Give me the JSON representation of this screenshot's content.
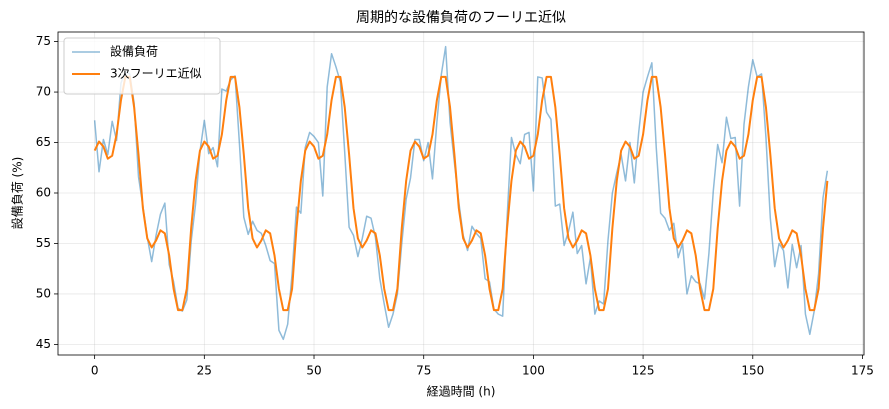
{
  "chart_data": {
    "type": "line",
    "title": "周期的な設備負荷のフーリエ近似",
    "xlabel": "経過時間 (h)",
    "ylabel": "設備負荷 (%)",
    "x": [
      0,
      1,
      2,
      3,
      4,
      5,
      6,
      7,
      8,
      9,
      10,
      11,
      12,
      13,
      14,
      15,
      16,
      17,
      18,
      19,
      20,
      21,
      22,
      23,
      24,
      25,
      26,
      27,
      28,
      29,
      30,
      31,
      32,
      33,
      34,
      35,
      36,
      37,
      38,
      39,
      40,
      41,
      42,
      43,
      44,
      45,
      46,
      47,
      48,
      49,
      50,
      51,
      52,
      53,
      54,
      55,
      56,
      57,
      58,
      59,
      60,
      61,
      62,
      63,
      64,
      65,
      66,
      67,
      68,
      69,
      70,
      71,
      72,
      73,
      74,
      75,
      76,
      77,
      78,
      79,
      80,
      81,
      82,
      83,
      84,
      85,
      86,
      87,
      88,
      89,
      90,
      91,
      92,
      93,
      94,
      95,
      96,
      97,
      98,
      99,
      100,
      101,
      102,
      103,
      104,
      105,
      106,
      107,
      108,
      109,
      110,
      111,
      112,
      113,
      114,
      115,
      116,
      117,
      118,
      119,
      120,
      121,
      122,
      123,
      124,
      125,
      126,
      127,
      128,
      129,
      130,
      131,
      132,
      133,
      134,
      135,
      136,
      137,
      138,
      139,
      140,
      141,
      142,
      143,
      144,
      145,
      146,
      147,
      148,
      149,
      150,
      151,
      152,
      153,
      154,
      155,
      156,
      157,
      158,
      159,
      160,
      161,
      162,
      163,
      164,
      165,
      166,
      167
    ],
    "series": [
      {
        "name": "設備負荷",
        "color": "#1f77b4",
        "opacity": 0.5,
        "width": 1.5,
        "values": [
          67.2,
          62.1,
          65.3,
          63.8,
          67.1,
          65.2,
          70.9,
          72.0,
          71.8,
          68.9,
          61.6,
          58.7,
          55.6,
          53.2,
          55.8,
          57.9,
          59.0,
          52.9,
          51.2,
          48.6,
          48.3,
          49.4,
          55.2,
          58.9,
          64.1,
          67.2,
          63.9,
          64.5,
          62.6,
          70.3,
          70.1,
          71.2,
          71.6,
          64.9,
          57.6,
          55.9,
          57.2,
          56.3,
          56.0,
          54.8,
          53.3,
          53.0,
          46.4,
          45.5,
          47.0,
          52.0,
          58.6,
          58.0,
          64.5,
          66.0,
          65.6,
          65.0,
          59.7,
          70.5,
          73.8,
          72.5,
          71.0,
          64.0,
          56.6,
          55.8,
          53.7,
          55.5,
          57.7,
          57.5,
          55.6,
          51.5,
          49.0,
          46.7,
          48.0,
          50.0,
          55.0,
          59.4,
          61.5,
          65.3,
          65.3,
          63.2,
          65.0,
          61.4,
          67.0,
          71.7,
          74.5,
          67.0,
          63.0,
          59.1,
          55.8,
          54.3,
          56.7,
          56.0,
          55.5,
          51.5,
          51.2,
          48.5,
          48.0,
          47.8,
          57.5,
          65.5,
          63.8,
          62.9,
          65.8,
          66.0,
          60.2,
          71.5,
          71.4,
          68.0,
          67.3,
          58.7,
          58.9,
          54.8,
          56.2,
          58.1,
          54.0,
          54.8,
          51.0,
          53.6,
          48.0,
          49.3,
          49.0,
          55.3,
          60.0,
          62.0,
          63.8,
          61.2,
          65.0,
          61.0,
          66.0,
          70.0,
          71.5,
          72.9,
          64.5,
          58.0,
          57.5,
          56.3,
          57.0,
          53.6,
          55.0,
          50.0,
          51.8,
          51.2,
          51.0,
          49.5,
          54.0,
          60.2,
          64.8,
          63.0,
          67.5,
          65.4,
          65.5,
          58.7,
          66.8,
          70.5,
          73.2,
          71.5,
          71.8,
          65.5,
          57.5,
          52.7,
          55.0,
          54.3,
          50.6,
          54.9,
          52.6,
          54.8,
          48.0,
          46.0,
          48.3,
          52.0,
          59.5,
          62.2
        ]
      },
      {
        "name": "3次フーリエ近似",
        "color": "#ff7f0e",
        "opacity": 1,
        "width": 2,
        "values": [
          64.2,
          65.1,
          64.6,
          63.4,
          63.7,
          65.8,
          69.2,
          71.5,
          71.5,
          68.5,
          63.8,
          58.5,
          55.5,
          54.6,
          55.3,
          56.3,
          56.0,
          53.8,
          50.5,
          48.4,
          48.4,
          50.5,
          56.5,
          61.2,
          64.2,
          65.1,
          64.6,
          63.4,
          63.7,
          65.8,
          69.2,
          71.5,
          71.5,
          68.5,
          63.8,
          58.5,
          55.5,
          54.6,
          55.3,
          56.3,
          56.0,
          53.8,
          50.5,
          48.4,
          48.4,
          50.5,
          56.5,
          61.2,
          64.2,
          65.1,
          64.6,
          63.4,
          63.7,
          65.8,
          69.2,
          71.5,
          71.5,
          68.5,
          63.8,
          58.5,
          55.5,
          54.6,
          55.3,
          56.3,
          56.0,
          53.8,
          50.5,
          48.4,
          48.4,
          50.5,
          56.5,
          61.2,
          64.2,
          65.1,
          64.6,
          63.4,
          63.7,
          65.8,
          69.2,
          71.5,
          71.5,
          68.5,
          63.8,
          58.5,
          55.5,
          54.6,
          55.3,
          56.3,
          56.0,
          53.8,
          50.5,
          48.4,
          48.4,
          50.5,
          56.5,
          61.2,
          64.2,
          65.1,
          64.6,
          63.4,
          63.7,
          65.8,
          69.2,
          71.5,
          71.5,
          68.5,
          63.8,
          58.5,
          55.5,
          54.6,
          55.3,
          56.3,
          56.0,
          53.8,
          50.5,
          48.4,
          48.4,
          50.5,
          56.5,
          61.2,
          64.2,
          65.1,
          64.6,
          63.4,
          63.7,
          65.8,
          69.2,
          71.5,
          71.5,
          68.5,
          63.8,
          58.5,
          55.5,
          54.6,
          55.3,
          56.3,
          56.0,
          53.8,
          50.5,
          48.4,
          48.4,
          50.5,
          56.5,
          61.2,
          64.2,
          65.1,
          64.6,
          63.4,
          63.7,
          65.8,
          69.2,
          71.5,
          71.5,
          68.5,
          63.8,
          58.5,
          55.5,
          54.6,
          55.3,
          56.3,
          56.0,
          53.8,
          50.5,
          48.4,
          48.4,
          50.5,
          56.5,
          61.2
        ]
      }
    ],
    "xlim": [
      -8.35,
      175.35
    ],
    "xticks": [
      0,
      25,
      50,
      75,
      100,
      125,
      150,
      175
    ],
    "ylim": [
      43.95,
      75.95
    ],
    "yticks": [
      45,
      50,
      55,
      60,
      65,
      70,
      75
    ],
    "grid": true,
    "legend": "upper left"
  }
}
